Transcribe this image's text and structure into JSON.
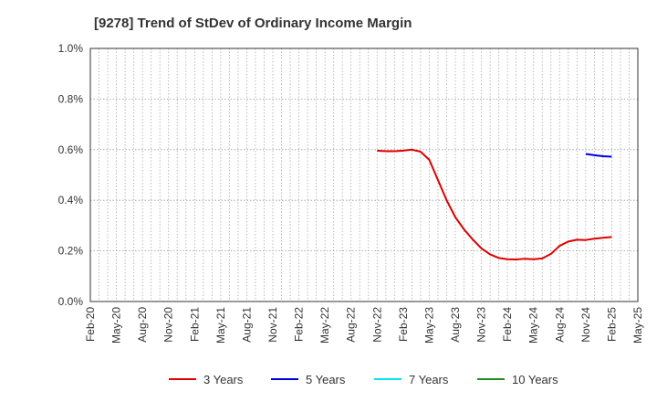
{
  "chart_data": {
    "type": "line",
    "title": "[9278]  Trend of StDev of Ordinary Income Margin",
    "xlabel": "",
    "ylabel": "",
    "ylim": [
      0,
      1.0
    ],
    "y_ticks": [
      "0.0%",
      "0.2%",
      "0.4%",
      "0.6%",
      "0.8%",
      "1.0%"
    ],
    "x_ticks": [
      "Feb-20",
      "May-20",
      "Aug-20",
      "Nov-20",
      "Feb-21",
      "May-21",
      "Aug-21",
      "Nov-21",
      "Feb-22",
      "May-22",
      "Aug-22",
      "Nov-22",
      "Feb-23",
      "May-23",
      "Aug-23",
      "Nov-23",
      "Feb-24",
      "May-24",
      "Aug-24",
      "Nov-24",
      "Feb-25",
      "May-25"
    ],
    "grid": true,
    "legend_position": "bottom",
    "series": [
      {
        "name": "3 Years",
        "color": "#dd0000",
        "points": [
          [
            "Nov-22",
            0.596
          ],
          [
            "Dec-22",
            0.594
          ],
          [
            "Jan-23",
            0.594
          ],
          [
            "Feb-23",
            0.596
          ],
          [
            "Mar-23",
            0.6
          ],
          [
            "Apr-23",
            0.592
          ],
          [
            "May-23",
            0.56
          ],
          [
            "Jun-23",
            0.48
          ],
          [
            "Jul-23",
            0.4
          ],
          [
            "Aug-23",
            0.333
          ],
          [
            "Sep-23",
            0.285
          ],
          [
            "Oct-23",
            0.245
          ],
          [
            "Nov-23",
            0.21
          ],
          [
            "Dec-23",
            0.186
          ],
          [
            "Jan-24",
            0.172
          ],
          [
            "Feb-24",
            0.167
          ],
          [
            "Mar-24",
            0.166
          ],
          [
            "Apr-24",
            0.169
          ],
          [
            "May-24",
            0.167
          ],
          [
            "Jun-24",
            0.17
          ],
          [
            "Jul-24",
            0.188
          ],
          [
            "Aug-24",
            0.22
          ],
          [
            "Sep-24",
            0.237
          ],
          [
            "Oct-24",
            0.244
          ],
          [
            "Nov-24",
            0.243
          ],
          [
            "Dec-24",
            0.248
          ],
          [
            "Jan-25",
            0.252
          ],
          [
            "Feb-25",
            0.255
          ]
        ]
      },
      {
        "name": "5 Years",
        "color": "#0000dd",
        "points": [
          [
            "Nov-24",
            0.583
          ],
          [
            "Dec-24",
            0.578
          ],
          [
            "Jan-25",
            0.574
          ],
          [
            "Feb-25",
            0.572
          ]
        ]
      },
      {
        "name": "7 Years",
        "color": "#00e5ee",
        "points": []
      },
      {
        "name": "10 Years",
        "color": "#228b22",
        "points": []
      }
    ]
  }
}
